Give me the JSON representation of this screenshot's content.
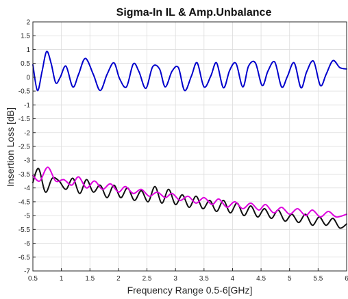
{
  "chart_data": {
    "type": "line",
    "title": "Sigma-In IL & Amp.Unbalance",
    "xlabel": "Frequency Range 0.5-6[GHz]",
    "ylabel": "Insertion Loss [dB]",
    "xlim": [
      0.5,
      6
    ],
    "ylim": [
      -7,
      2
    ],
    "x_ticks": [
      0.5,
      1,
      1.5,
      2,
      2.5,
      3,
      3.5,
      4,
      4.5,
      5,
      5.5,
      6
    ],
    "x_tick_labels": [
      "0.5",
      "1",
      "1.5",
      "2",
      "2.5",
      "3",
      "3.5",
      "4",
      "4.5",
      "5",
      "5.5",
      "6"
    ],
    "y_ticks": [
      2,
      1.5,
      1,
      0.5,
      0,
      -0.5,
      -1,
      -1.5,
      -2,
      -2.5,
      -3,
      -3.5,
      -4,
      -4.5,
      -5,
      -5.5,
      -6,
      -6.5,
      -7
    ],
    "y_tick_labels": [
      "2",
      "1.5",
      "1",
      "0.5",
      "0",
      "-0.5",
      "-1",
      "-1.5",
      "-2",
      "-2.5",
      "-3",
      "-3.5",
      "-4",
      "-4.5",
      "-5",
      "-5.5",
      "-6",
      "-6.5",
      "-7"
    ],
    "grid": true,
    "series": [
      {
        "color": "#0000cc",
        "x": [
          0.5,
          0.58,
          0.66,
          0.74,
          0.82,
          0.9,
          0.98,
          1.08,
          1.2,
          1.3,
          1.42,
          1.56,
          1.68,
          1.8,
          1.92,
          2.02,
          2.14,
          2.26,
          2.36,
          2.48,
          2.6,
          2.72,
          2.82,
          2.94,
          3.05,
          3.16,
          3.28,
          3.38,
          3.5,
          3.62,
          3.72,
          3.84,
          3.95,
          4.06,
          4.18,
          4.28,
          4.4,
          4.52,
          4.62,
          4.74,
          4.86,
          4.96,
          5.08,
          5.2,
          5.3,
          5.42,
          5.54,
          5.64,
          5.76,
          5.88,
          6.0
        ],
        "y": [
          0.45,
          -0.48,
          0.2,
          0.93,
          0.5,
          -0.2,
          0.0,
          0.4,
          -0.35,
          0.1,
          0.68,
          0.1,
          -0.48,
          0.1,
          0.52,
          -0.05,
          -0.35,
          0.48,
          0.2,
          -0.4,
          0.38,
          0.3,
          -0.35,
          0.22,
          0.35,
          -0.48,
          0.05,
          0.52,
          -0.35,
          0.05,
          0.52,
          -0.38,
          0.25,
          0.5,
          -0.35,
          0.4,
          0.52,
          -0.3,
          0.22,
          0.55,
          -0.35,
          0.02,
          0.52,
          -0.38,
          0.2,
          0.58,
          -0.3,
          0.1,
          0.6,
          0.35,
          0.3
        ]
      },
      {
        "color": "#111111",
        "x": [
          0.5,
          0.6,
          0.72,
          0.84,
          0.96,
          1.08,
          1.2,
          1.32,
          1.44,
          1.56,
          1.68,
          1.8,
          1.92,
          2.04,
          2.16,
          2.28,
          2.4,
          2.52,
          2.64,
          2.76,
          2.88,
          3.0,
          3.12,
          3.24,
          3.36,
          3.48,
          3.6,
          3.72,
          3.84,
          3.96,
          4.08,
          4.2,
          4.32,
          4.44,
          4.56,
          4.68,
          4.8,
          4.92,
          5.04,
          5.16,
          5.28,
          5.4,
          5.52,
          5.64,
          5.76,
          5.88,
          6.0
        ],
        "y": [
          -3.8,
          -3.3,
          -4.15,
          -3.65,
          -3.75,
          -4.05,
          -3.65,
          -4.2,
          -3.7,
          -4.15,
          -3.9,
          -4.35,
          -3.9,
          -4.35,
          -4.0,
          -4.45,
          -4.1,
          -4.5,
          -3.95,
          -4.55,
          -4.05,
          -4.6,
          -4.25,
          -4.7,
          -4.3,
          -4.75,
          -4.45,
          -4.85,
          -4.45,
          -4.9,
          -4.55,
          -5.0,
          -4.65,
          -5.05,
          -4.75,
          -5.1,
          -4.8,
          -5.2,
          -4.95,
          -5.25,
          -4.95,
          -5.35,
          -5.05,
          -5.35,
          -5.1,
          -5.45,
          -5.3
        ]
      },
      {
        "color": "#dd00dd",
        "x": [
          0.5,
          0.62,
          0.76,
          0.9,
          1.04,
          1.18,
          1.3,
          1.44,
          1.58,
          1.72,
          1.86,
          2.0,
          2.12,
          2.26,
          2.4,
          2.54,
          2.68,
          2.82,
          2.94,
          3.08,
          3.22,
          3.36,
          3.5,
          3.64,
          3.76,
          3.9,
          4.04,
          4.18,
          4.32,
          4.46,
          4.58,
          4.72,
          4.86,
          5.0,
          5.14,
          5.28,
          5.4,
          5.54,
          5.68,
          5.82,
          6.0
        ],
        "y": [
          -3.55,
          -3.75,
          -3.25,
          -3.75,
          -3.7,
          -3.9,
          -3.6,
          -4.0,
          -3.75,
          -4.05,
          -3.85,
          -4.15,
          -3.95,
          -4.2,
          -4.05,
          -4.3,
          -4.15,
          -4.35,
          -4.2,
          -4.45,
          -4.3,
          -4.55,
          -4.35,
          -4.6,
          -4.4,
          -4.7,
          -4.5,
          -4.75,
          -4.55,
          -4.8,
          -4.6,
          -4.9,
          -4.7,
          -4.95,
          -4.75,
          -5.0,
          -4.8,
          -5.05,
          -4.85,
          -5.05,
          -4.95
        ]
      }
    ]
  }
}
